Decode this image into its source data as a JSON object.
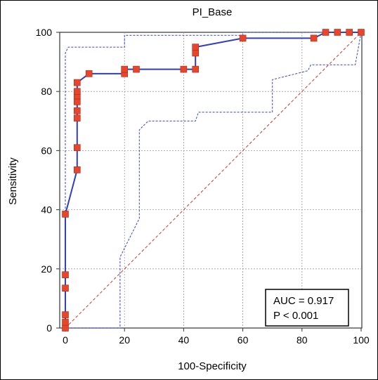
{
  "chart_data": {
    "type": "line",
    "title": "PI_Base",
    "xlabel": "100-Specificity",
    "ylabel": "Sensitivity",
    "xlim": [
      0,
      100
    ],
    "ylim": [
      0,
      100
    ],
    "xticks": [
      "0",
      "20",
      "40",
      "60",
      "80",
      "100"
    ],
    "yticks": [
      "0",
      "20",
      "40",
      "60",
      "80",
      "100"
    ],
    "grid": true,
    "series": [
      {
        "role": "roc-curve",
        "color": "#2f3fbf",
        "marker_color": "#e8452a",
        "points": [
          [
            0,
            0
          ],
          [
            0,
            2
          ],
          [
            0,
            4.5
          ],
          [
            0,
            13.5
          ],
          [
            0,
            18
          ],
          [
            0,
            38.5
          ],
          [
            4,
            53.5
          ],
          [
            4,
            61
          ],
          [
            4,
            71
          ],
          [
            4,
            73.5
          ],
          [
            4,
            76.5
          ],
          [
            4,
            78.5
          ],
          [
            4,
            80
          ],
          [
            4,
            83
          ],
          [
            8,
            86
          ],
          [
            20,
            86
          ],
          [
            20,
            87.5
          ],
          [
            24,
            87.5
          ],
          [
            40,
            87.5
          ],
          [
            44,
            87.5
          ],
          [
            44,
            93
          ],
          [
            44,
            95
          ],
          [
            60,
            98
          ],
          [
            84,
            98
          ],
          [
            88,
            100
          ],
          [
            92,
            100
          ],
          [
            96,
            100
          ],
          [
            100,
            100
          ]
        ],
        "markers": [
          [
            0,
            0
          ],
          [
            0,
            2
          ],
          [
            0,
            4.5
          ],
          [
            0,
            13.5
          ],
          [
            0,
            18
          ],
          [
            0,
            38.5
          ],
          [
            4,
            53.5
          ],
          [
            4,
            61
          ],
          [
            4,
            71
          ],
          [
            4,
            73.5
          ],
          [
            4,
            76.5
          ],
          [
            4,
            78.5
          ],
          [
            4,
            80
          ],
          [
            4,
            83
          ],
          [
            8,
            86
          ],
          [
            20,
            86
          ],
          [
            20,
            87.5
          ],
          [
            24,
            87.5
          ],
          [
            40,
            87.5
          ],
          [
            44,
            87.5
          ],
          [
            44,
            93
          ],
          [
            44,
            95
          ],
          [
            60,
            98
          ],
          [
            84,
            98
          ],
          [
            88,
            100
          ],
          [
            92,
            100
          ],
          [
            96,
            100
          ],
          [
            100,
            100
          ]
        ]
      },
      {
        "role": "upper-confidence-bound",
        "color": "#3344cc",
        "style": "dashed",
        "points": [
          [
            0,
            0
          ],
          [
            0,
            93
          ],
          [
            1,
            95
          ],
          [
            20,
            95
          ],
          [
            20,
            99
          ],
          [
            60,
            99
          ],
          [
            60,
            100
          ],
          [
            100,
            100
          ]
        ]
      },
      {
        "role": "lower-confidence-bound",
        "color": "#3344cc",
        "style": "dashed",
        "points": [
          [
            0,
            0
          ],
          [
            18.5,
            0
          ],
          [
            18.5,
            24
          ],
          [
            25,
            37
          ],
          [
            25,
            67
          ],
          [
            28,
            70
          ],
          [
            44,
            70
          ],
          [
            45,
            73
          ],
          [
            70,
            73
          ],
          [
            70,
            84
          ],
          [
            82,
            87
          ],
          [
            83,
            89
          ],
          [
            98,
            89
          ],
          [
            100,
            100
          ]
        ]
      },
      {
        "role": "reference-diagonal",
        "color": "#c0392b",
        "style": "dashed",
        "points": [
          [
            0,
            0
          ],
          [
            100,
            100
          ]
        ]
      }
    ],
    "annotation": {
      "lines": [
        "AUC = 0.917",
        "P < 0.001"
      ],
      "placement": "bottom-right"
    }
  }
}
